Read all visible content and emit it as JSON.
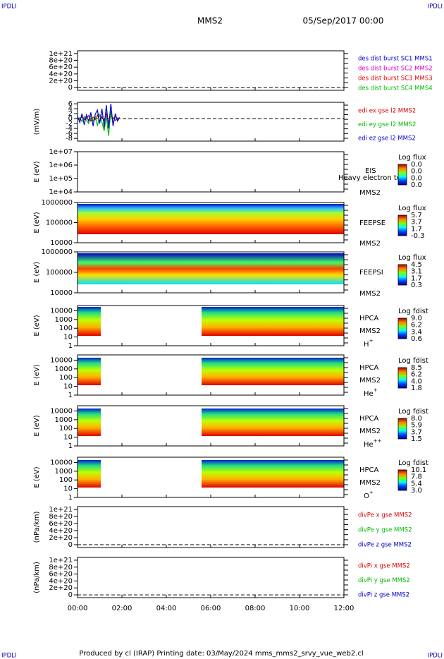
{
  "header": {
    "corner_left": "IPDLI",
    "corner_right": "IPDLI",
    "title": "MMS2",
    "date": "05/Sep/2017 00:00"
  },
  "footer": {
    "text": "Produced by cl (IRAP)   Printing date: 03/May/2024   mms_mms2_srvy_vue_web2.cl",
    "corner_left": "IPDLI",
    "corner_right": "IPDLI"
  },
  "xaxis": {
    "xlim": [
      0,
      12
    ],
    "xticks": [
      {
        "value": 0,
        "label": "00:00"
      },
      {
        "value": 2,
        "label": "02:00"
      },
      {
        "value": 4,
        "label": "04:00"
      },
      {
        "value": 6,
        "label": "06:00"
      },
      {
        "value": 8,
        "label": "08:00"
      },
      {
        "value": 10,
        "label": "10:00"
      },
      {
        "value": 12,
        "label": "12:00"
      }
    ]
  },
  "chart_data": [
    {
      "type": "line",
      "ylim": [
        -8e+19,
        1.08e+21
      ],
      "yticks": [
        0,
        {
          "value": 2e+20,
          "label": "2e+20"
        },
        {
          "value": 4e+20,
          "label": "4e+20"
        },
        {
          "value": 6e+20,
          "label": "6e+20"
        },
        {
          "value": 8e+20,
          "label": "8e+20"
        },
        {
          "value": 1e+21,
          "label": "1e+21"
        }
      ],
      "series": [
        {
          "name": "des dist burst SC1 MMS1",
          "color": "#0000cc"
        },
        {
          "name": "des dist burst SC2 MMS2",
          "color": "#cc00cc"
        },
        {
          "name": "des dist burst SC3 MMS3",
          "color": "#dd0000"
        },
        {
          "name": "des dist burst SC4 MMS4",
          "color": "#00bb00"
        }
      ]
    },
    {
      "type": "line",
      "ylabel": "(mV/m)",
      "ylim": [
        -9.1,
        6.6
      ],
      "yticks": [
        6,
        4,
        2,
        0,
        -2,
        -4,
        -6,
        -8
      ],
      "x": [
        0,
        0.1,
        0.2,
        0.3,
        0.4,
        0.5,
        0.6,
        0.7,
        0.8,
        0.9,
        1.0,
        1.1,
        1.2,
        1.3,
        1.4,
        1.5,
        1.6,
        1.7,
        1.8,
        1.9
      ],
      "series": [
        {
          "name": "edi ex gse l2 MMS2",
          "color": "#dd0000",
          "values": [
            0.5,
            -0.3,
            0.8,
            -0.5,
            0.3,
            1.2,
            -1.0,
            0.6,
            -0.4,
            1.5,
            -1.2,
            0.8,
            -0.6,
            2.0,
            -1.5,
            1.0,
            0.4,
            -0.8,
            0.3,
            0.1
          ]
        },
        {
          "name": "edi ey gse l2 MMS2",
          "color": "#00bb00",
          "values": [
            -0.5,
            0.4,
            -1.2,
            0.9,
            -0.6,
            -2.0,
            1.5,
            -1.0,
            0.8,
            -3.0,
            2.0,
            -1.5,
            -5.0,
            1.0,
            -7.0,
            3.0,
            -2.0,
            1.0,
            -0.5,
            0.2
          ]
        },
        {
          "name": "edi ez gse l2 MMS2",
          "color": "#0000cc",
          "values": [
            1.0,
            -1.5,
            2.0,
            -2.5,
            1.5,
            -1.0,
            2.5,
            -3.0,
            1.8,
            3.5,
            -2.0,
            4.0,
            -3.5,
            5.5,
            -4.0,
            6.0,
            -3.0,
            2.0,
            -1.0,
            0.5
          ]
        }
      ]
    },
    {
      "type": "spectrogram",
      "ylabel": "E (eV)",
      "log": true,
      "ylim": [
        10000,
        10000000
      ],
      "yticks": [
        {
          "value": 10000000,
          "label": "1e+07"
        },
        {
          "value": 1000000,
          "label": "1e+06"
        },
        {
          "value": 100000,
          "label": "1e+05"
        },
        {
          "value": 10000,
          "label": "1e+04"
        }
      ],
      "labels": [
        "EIS",
        "MMS2"
      ],
      "overlay": "Heavy electron to",
      "colorbar": {
        "title": "Log flux",
        "labels": [
          "0.0",
          "0.0",
          "0.0",
          "0.0"
        ]
      }
    },
    {
      "type": "spectrogram",
      "ylabel": "E (eV)",
      "log": true,
      "ylim": [
        10000,
        1000000
      ],
      "yticks": [
        1000000,
        100000,
        10000
      ],
      "labels": [
        "FEEPSE",
        "MMS2"
      ],
      "colorbar": {
        "title": "Log flux",
        "labels": [
          "5.7",
          "3.7",
          "1.7",
          "-0.3"
        ]
      }
    },
    {
      "type": "spectrogram",
      "ylabel": "E (eV)",
      "log": true,
      "ylim": [
        10000,
        1000000
      ],
      "yticks": [
        1000000,
        100000,
        10000
      ],
      "labels": [
        "FEEPSI",
        "MMS2"
      ],
      "colorbar": {
        "title": "Log flux",
        "labels": [
          "4.5",
          "3.1",
          "1.7",
          "0.3"
        ]
      }
    },
    {
      "type": "spectrogram",
      "ylabel": "E (eV)",
      "log": true,
      "ylim": [
        1,
        40000
      ],
      "yticks": [
        10000,
        1000,
        100,
        10,
        1
      ],
      "labels": [
        "HPCA",
        "MMS2"
      ],
      "species": {
        "base": "H",
        "sup": "+"
      },
      "colorbar": {
        "title": "Log fdist",
        "labels": [
          "9.0",
          "6.2",
          "3.4",
          "0.6"
        ]
      }
    },
    {
      "type": "spectrogram",
      "ylabel": "E (eV)",
      "log": true,
      "ylim": [
        1,
        40000
      ],
      "yticks": [
        10000,
        1000,
        100,
        10,
        1
      ],
      "labels": [
        "HPCA",
        "MMS2"
      ],
      "species": {
        "base": "He",
        "sup": "+"
      },
      "colorbar": {
        "title": "Log fdist",
        "labels": [
          "8.5",
          "6.2",
          "4.0",
          "1.8"
        ]
      }
    },
    {
      "type": "spectrogram",
      "ylabel": "E (eV)",
      "log": true,
      "ylim": [
        1,
        40000
      ],
      "yticks": [
        10000,
        1000,
        100,
        10,
        1
      ],
      "labels": [
        "HPCA",
        "MMS2"
      ],
      "species": {
        "base": "He",
        "sup": "++"
      },
      "colorbar": {
        "title": "Log fdist",
        "labels": [
          "8.0",
          "5.9",
          "3.7",
          "1.5"
        ]
      }
    },
    {
      "type": "spectrogram",
      "ylabel": "E (eV)",
      "log": true,
      "ylim": [
        1,
        40000
      ],
      "yticks": [
        10000,
        1000,
        100,
        10,
        1
      ],
      "labels": [
        "HPCA",
        "MMS2"
      ],
      "species": {
        "base": "O",
        "sup": "+"
      },
      "colorbar": {
        "title": "Log fdist",
        "labels": [
          "10.1",
          "7.8",
          "5.4",
          "3.0"
        ]
      }
    },
    {
      "type": "line",
      "ylabel": "(nPa/km)",
      "ylim": [
        -8e+19,
        1.08e+21
      ],
      "yticks": [
        0,
        {
          "value": 2e+20,
          "label": "2e+20"
        },
        {
          "value": 4e+20,
          "label": "4e+20"
        },
        {
          "value": 6e+20,
          "label": "6e+20"
        },
        {
          "value": 8e+20,
          "label": "8e+20"
        },
        {
          "value": 1e+21,
          "label": "1e+21"
        }
      ],
      "series": [
        {
          "name": "divPe x gse MMS2",
          "color": "#dd0000"
        },
        {
          "name": "divPe y gse MMS2",
          "color": "#00bb00"
        },
        {
          "name": "divPe z gse MMS2",
          "color": "#0000cc"
        }
      ]
    },
    {
      "type": "line",
      "ylabel": "(nPa/km)",
      "ylim": [
        -8e+19,
        1.08e+21
      ],
      "yticks": [
        0,
        {
          "value": 2e+20,
          "label": "2e+20"
        },
        {
          "value": 4e+20,
          "label": "4e+20"
        },
        {
          "value": 6e+20,
          "label": "6e+20"
        },
        {
          "value": 8e+20,
          "label": "8e+20"
        },
        {
          "value": 1e+21,
          "label": "1e+21"
        }
      ],
      "series": [
        {
          "name": "divPi x gse MMS2",
          "color": "#dd0000"
        },
        {
          "name": "divPi y gse MMS2",
          "color": "#00bb00"
        },
        {
          "name": "divPi z gse MMS2",
          "color": "#0000cc"
        }
      ]
    }
  ]
}
